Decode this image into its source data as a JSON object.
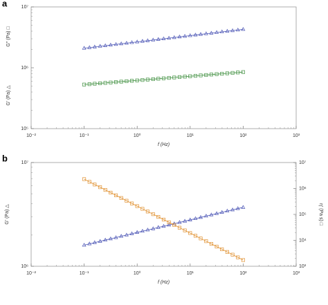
{
  "chart_data": [
    {
      "type": "line",
      "panel": "a",
      "xlabel": "f (Hz)",
      "log_x": true,
      "log_y": true,
      "xlim": [
        0.01,
        1000
      ],
      "ylim": [
        100000,
        10000000
      ],
      "xticks": [
        {
          "value": 0.01,
          "label": "10⁻²"
        },
        {
          "value": 0.1,
          "label": "10⁻¹"
        },
        {
          "value": 1,
          "label": "10⁰"
        },
        {
          "value": 10,
          "label": "10¹"
        },
        {
          "value": 100,
          "label": "10²"
        },
        {
          "value": 1000,
          "label": "10³"
        }
      ],
      "yticks": [
        {
          "value": 100000,
          "label": "10⁵"
        },
        {
          "value": 1000000,
          "label": "10⁶"
        },
        {
          "value": 10000000,
          "label": "10⁷"
        }
      ],
      "x": [
        0.1,
        0.126,
        0.158,
        0.2,
        0.251,
        0.316,
        0.398,
        0.501,
        0.631,
        0.794,
        1,
        1.26,
        1.58,
        2,
        2.51,
        3.16,
        3.98,
        5.01,
        6.31,
        7.94,
        10,
        12.6,
        15.8,
        20,
        25.1,
        31.6,
        39.8,
        50.1,
        63.1,
        79.4,
        100
      ],
      "series": [
        {
          "name": "G′",
          "axis_label": "G′ (Pa) △",
          "color": "#4b55b5",
          "marker": "triangle",
          "values": [
            2100000,
            2150000,
            2200000,
            2260000,
            2310000,
            2370000,
            2420000,
            2480000,
            2540000,
            2600000,
            2660000,
            2730000,
            2790000,
            2860000,
            2930000,
            3000000,
            3070000,
            3140000,
            3220000,
            3300000,
            3380000,
            3460000,
            3540000,
            3630000,
            3710000,
            3800000,
            3900000,
            3990000,
            4080000,
            4180000,
            4280000
          ]
        },
        {
          "name": "G″",
          "axis_label": "G″ (Pa) □",
          "color": "#3f8f3f",
          "marker": "square",
          "values": [
            530000,
            538000,
            547000,
            556000,
            564000,
            573000,
            582000,
            592000,
            601000,
            611000,
            620000,
            630000,
            640000,
            650000,
            661000,
            671000,
            682000,
            693000,
            704000,
            715000,
            726000,
            738000,
            750000,
            761000,
            774000,
            786000,
            798000,
            811000,
            824000,
            837000,
            850000
          ]
        }
      ]
    },
    {
      "type": "line",
      "panel": "b",
      "xlabel": "f (Hz)",
      "log_x": true,
      "log_y": true,
      "xlim": [
        0.01,
        1000
      ],
      "ylim": [
        1000000,
        10000000
      ],
      "y2lim": [
        1000,
        10000000
      ],
      "xticks": [
        {
          "value": 0.01,
          "label": "10⁻²"
        },
        {
          "value": 0.1,
          "label": "10⁻¹"
        },
        {
          "value": 1,
          "label": "10⁰"
        },
        {
          "value": 10,
          "label": "10¹"
        },
        {
          "value": 100,
          "label": "10²"
        },
        {
          "value": 1000,
          "label": "10³"
        }
      ],
      "yticks": [
        {
          "value": 1000000,
          "label": "10⁶"
        },
        {
          "value": 10000000,
          "label": "10⁷"
        }
      ],
      "y2ticks": [
        {
          "value": 1000,
          "label": "10³"
        },
        {
          "value": 10000,
          "label": "10⁴"
        },
        {
          "value": 100000,
          "label": "10⁵"
        },
        {
          "value": 1000000,
          "label": "10⁶"
        },
        {
          "value": 10000000,
          "label": "10⁷"
        }
      ],
      "x": [
        0.1,
        0.126,
        0.158,
        0.2,
        0.251,
        0.316,
        0.398,
        0.501,
        0.631,
        0.794,
        1,
        1.26,
        1.58,
        2,
        2.51,
        3.16,
        3.98,
        5.01,
        6.31,
        7.94,
        10,
        12.6,
        15.8,
        20,
        25.1,
        31.6,
        39.8,
        50.1,
        63.1,
        79.4,
        100
      ],
      "series": [
        {
          "name": "G′",
          "axis_label": "G′ (Pa) △",
          "color": "#4b55b5",
          "marker": "triangle",
          "values": [
            1600000,
            1645000,
            1690000,
            1740000,
            1790000,
            1840000,
            1890000,
            1950000,
            2000000,
            2060000,
            2120000,
            2180000,
            2240000,
            2300000,
            2370000,
            2430000,
            2500000,
            2570000,
            2650000,
            2720000,
            2800000,
            2880000,
            2960000,
            3050000,
            3130000,
            3220000,
            3310000,
            3410000,
            3500000,
            3600000,
            3700000
          ]
        },
        {
          "name": "η′",
          "axis_label": "η′ (Pa s) □",
          "color": "#e0902f",
          "marker": "square",
          "axis": "y2",
          "values": [
            2290000,
            1800000,
            1420000,
            1120000,
            879000,
            692000,
            545000,
            429000,
            337000,
            265000,
            209000,
            164000,
            129000,
            102000,
            80200,
            63100,
            49700,
            39100,
            30800,
            24200,
            19100,
            15000,
            11800,
            9290,
            7310,
            5750,
            4530,
            3560,
            2810,
            2210,
            1740
          ]
        }
      ]
    }
  ]
}
